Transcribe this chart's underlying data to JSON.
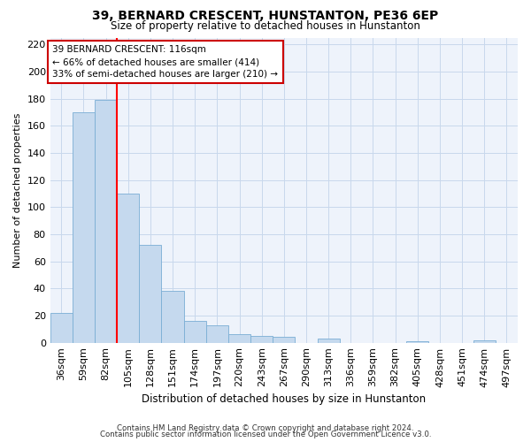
{
  "title": "39, BERNARD CRESCENT, HUNSTANTON, PE36 6EP",
  "subtitle": "Size of property relative to detached houses in Hunstanton",
  "xlabel": "Distribution of detached houses by size in Hunstanton",
  "ylabel": "Number of detached properties",
  "categories": [
    "36sqm",
    "59sqm",
    "82sqm",
    "105sqm",
    "128sqm",
    "151sqm",
    "174sqm",
    "197sqm",
    "220sqm",
    "243sqm",
    "267sqm",
    "290sqm",
    "313sqm",
    "336sqm",
    "359sqm",
    "382sqm",
    "405sqm",
    "428sqm",
    "451sqm",
    "474sqm",
    "497sqm"
  ],
  "values": [
    22,
    170,
    179,
    110,
    72,
    38,
    16,
    13,
    6,
    5,
    4,
    0,
    3,
    0,
    0,
    0,
    1,
    0,
    0,
    2,
    0
  ],
  "bar_color": "#c5d9ee",
  "bar_edge_color": "#7aaed4",
  "grid_color": "#c8d8ec",
  "vline_color": "red",
  "annotation_line1": "39 BERNARD CRESCENT: 116sqm",
  "annotation_line2": "← 66% of detached houses are smaller (414)",
  "annotation_line3": "33% of semi-detached houses are larger (210) →",
  "annotation_box_color": "white",
  "annotation_box_edge": "#cc0000",
  "ylim": [
    0,
    225
  ],
  "yticks": [
    0,
    20,
    40,
    60,
    80,
    100,
    120,
    140,
    160,
    180,
    200,
    220
  ],
  "footer_line1": "Contains HM Land Registry data © Crown copyright and database right 2024.",
  "footer_line2": "Contains public sector information licensed under the Open Government Licence v3.0.",
  "background_color": "#ffffff",
  "plot_bg_color": "#eef3fb"
}
